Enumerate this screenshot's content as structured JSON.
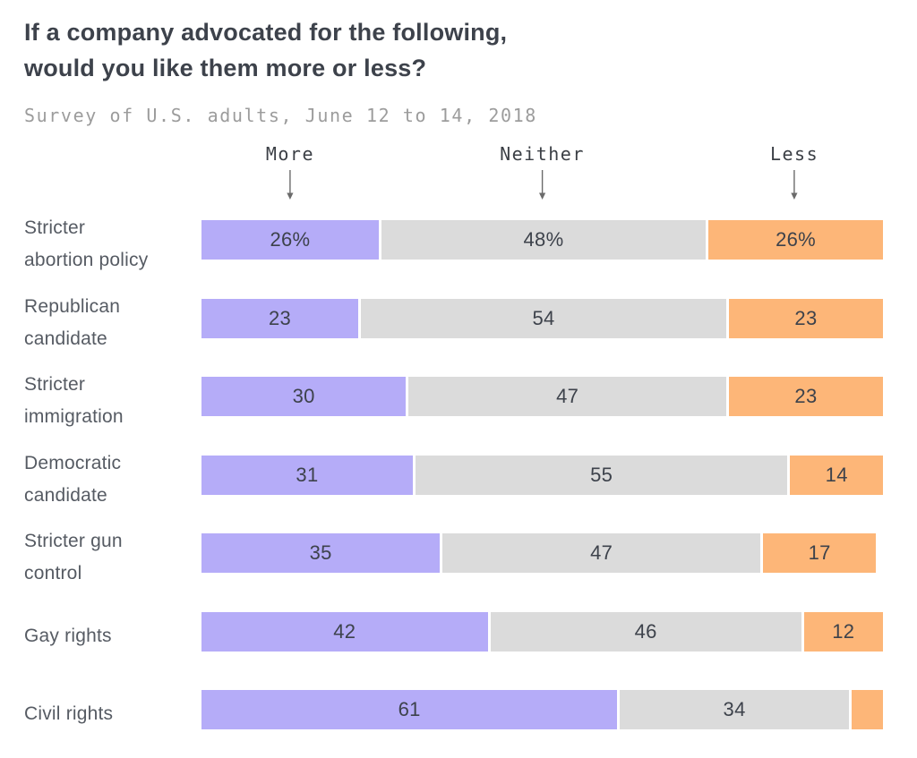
{
  "title": {
    "line1": "If a company advocated for the following,",
    "line2": "would you like them more or less?"
  },
  "subtitle": "Survey of U.S. adults, June 12 to 14, 2018",
  "column_headers": {
    "more": "More",
    "neither": "Neither",
    "less": "Less"
  },
  "colors": {
    "more": "#b5acf8",
    "neither": "#dbdbdb",
    "less": "#fdb678",
    "title_text": "#3d424b",
    "label_text": "#565b63",
    "value_text": "#3d424b",
    "subtitle_text": "#9c9c9c",
    "header_text": "#3b3f45",
    "arrow": "#6b6b6b",
    "background": "#ffffff"
  },
  "chart_data": {
    "type": "bar",
    "orientation": "horizontal",
    "stacked": true,
    "unit": "percent",
    "xlim": [
      0,
      100
    ],
    "grid": false,
    "legend_position": "top-arrows",
    "title": "If a company advocated for the following, would you like them more or less?",
    "subtitle": "Survey of U.S. adults, June 12 to 14, 2018",
    "series_names": [
      "More",
      "Neither",
      "Less"
    ],
    "categories": [
      "Stricter abortion policy",
      "Republican candidate",
      "Stricter immigration",
      "Democratic candidate",
      "Stricter gun control",
      "Gay rights",
      "Civil rights"
    ],
    "rows": [
      {
        "category": "Stricter abortion policy",
        "label_lines": [
          "Stricter",
          "abortion policy"
        ],
        "more": 26,
        "neither": 48,
        "less": 26,
        "display_labels": [
          "26%",
          "48%",
          "26%"
        ]
      },
      {
        "category": "Republican candidate",
        "label_lines": [
          "Republican",
          "candidate"
        ],
        "more": 23,
        "neither": 54,
        "less": 23,
        "display_labels": [
          "23",
          "54",
          "23"
        ]
      },
      {
        "category": "Stricter immigration",
        "label_lines": [
          "Stricter",
          "immigration"
        ],
        "more": 30,
        "neither": 47,
        "less": 23,
        "display_labels": [
          "30",
          "47",
          "23"
        ]
      },
      {
        "category": "Democratic candidate",
        "label_lines": [
          "Democratic",
          "candidate"
        ],
        "more": 31,
        "neither": 55,
        "less": 14,
        "display_labels": [
          "31",
          "55",
          "14"
        ]
      },
      {
        "category": "Stricter gun control",
        "label_lines": [
          "Stricter gun",
          "control"
        ],
        "more": 35,
        "neither": 47,
        "less": 17,
        "display_labels": [
          "35",
          "47",
          "17"
        ]
      },
      {
        "category": "Gay rights",
        "label_lines": [
          "Gay rights"
        ],
        "more": 42,
        "neither": 46,
        "less": 12,
        "display_labels": [
          "42",
          "46",
          "12"
        ]
      },
      {
        "category": "Civil rights",
        "label_lines": [
          "Civil rights"
        ],
        "more": 61,
        "neither": 34,
        "less": 5,
        "display_labels": [
          "61",
          "34",
          ""
        ]
      }
    ]
  }
}
